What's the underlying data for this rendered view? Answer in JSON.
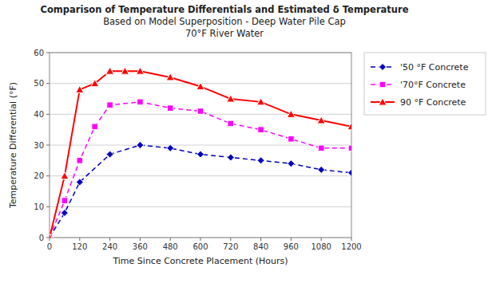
{
  "chart_data": {
    "type": "line",
    "title": "Comparison of Temperature Differentials and Estimated δ Temperature\nBased on Model Superposition - Deep Water Pile Cap\n70°F River Water",
    "x_label": "Time Since Concrete Placement (Hours)",
    "y_label": "Temperature Differential (°F)",
    "xlim": [
      0,
      1200
    ],
    "ylim": [
      0,
      60
    ],
    "xticks": [
      0,
      120,
      240,
      360,
      480,
      600,
      720,
      840,
      960,
      1080,
      1200
    ],
    "yticks": [
      0,
      10,
      20,
      30,
      40,
      50,
      60
    ],
    "grid": "y",
    "legend": "right",
    "series": [
      {
        "name": "'50 °F Concrete",
        "color": "#0000BB",
        "marker": "diamond",
        "line_style": "dashed",
        "x": [
          0,
          60,
          120,
          240,
          360,
          480,
          600,
          720,
          840,
          960,
          1080,
          1200
        ],
        "values": [
          0,
          8,
          18,
          27,
          30,
          29,
          27,
          26,
          25,
          24,
          22,
          21
        ]
      },
      {
        "name": "'70°F Concrete",
        "color": "#FF00FF",
        "marker": "square",
        "line_style": "dashed",
        "x": [
          0,
          60,
          120,
          180,
          240,
          360,
          480,
          600,
          720,
          840,
          960,
          1080,
          1200
        ],
        "values": [
          0,
          12,
          25,
          36,
          43,
          44,
          42,
          41,
          37,
          35,
          32,
          29,
          29
        ]
      },
      {
        "name": "90 °F Concrete",
        "color": "#FF0000",
        "marker": "triangle",
        "line_style": "solid",
        "x": [
          0,
          60,
          120,
          180,
          240,
          300,
          360,
          480,
          600,
          720,
          840,
          960,
          1080,
          1200
        ],
        "values": [
          0,
          20,
          48,
          50,
          54,
          54,
          54,
          52,
          49,
          45,
          44,
          40,
          38,
          36
        ]
      }
    ]
  }
}
